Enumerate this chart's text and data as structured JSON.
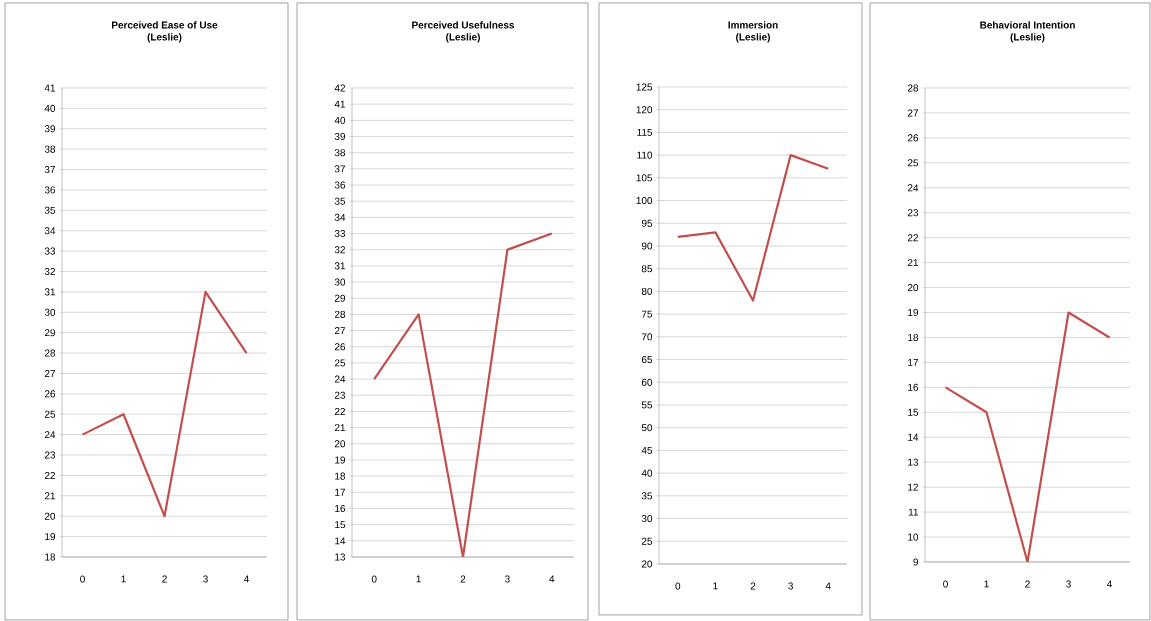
{
  "chart_data": [
    {
      "type": "line",
      "title": "Perceived Ease of Use",
      "subtitle": "(Leslie)",
      "categories": [
        "0",
        "1",
        "2",
        "3",
        "4"
      ],
      "values": [
        24,
        25,
        20,
        31,
        28
      ],
      "color": "#c0504d",
      "ylim": [
        18,
        41
      ],
      "yticks": [
        18,
        19,
        20,
        21,
        22,
        23,
        24,
        25,
        26,
        27,
        28,
        29,
        30,
        31,
        32,
        33,
        34,
        35,
        36,
        37,
        38,
        39,
        40,
        41
      ],
      "grid": "y"
    },
    {
      "type": "line",
      "title": "Perceived Usefulness",
      "subtitle": "(Leslie)",
      "categories": [
        "0",
        "1",
        "2",
        "3",
        "4"
      ],
      "values": [
        24,
        28,
        13,
        32,
        33
      ],
      "color": "#c0504d",
      "ylim": [
        13,
        42
      ],
      "yticks": [
        13,
        14,
        15,
        16,
        17,
        18,
        19,
        20,
        21,
        22,
        23,
        24,
        25,
        26,
        27,
        28,
        29,
        30,
        31,
        32,
        33,
        34,
        35,
        36,
        37,
        38,
        39,
        40,
        41,
        42
      ],
      "grid": "y"
    },
    {
      "type": "line",
      "title": "Immersion",
      "subtitle": "(Leslie)",
      "categories": [
        "0",
        "1",
        "2",
        "3",
        "4"
      ],
      "values": [
        92,
        93,
        78,
        110,
        107
      ],
      "color": "#c0504d",
      "ylim": [
        20,
        125
      ],
      "yticks": [
        20,
        25,
        30,
        35,
        40,
        45,
        50,
        55,
        60,
        65,
        70,
        75,
        80,
        85,
        90,
        95,
        100,
        105,
        110,
        115,
        120,
        125
      ],
      "grid": "y"
    },
    {
      "type": "line",
      "title": "Behavioral Intention",
      "subtitle": "(Leslie)",
      "categories": [
        "0",
        "1",
        "2",
        "3",
        "4"
      ],
      "values": [
        16,
        15,
        9,
        19,
        18
      ],
      "color": "#c0504d",
      "ylim": [
        9,
        28
      ],
      "yticks": [
        9,
        10,
        11,
        12,
        13,
        14,
        15,
        16,
        17,
        18,
        19,
        20,
        21,
        22,
        23,
        24,
        25,
        26,
        27,
        28
      ],
      "grid": "y"
    }
  ]
}
